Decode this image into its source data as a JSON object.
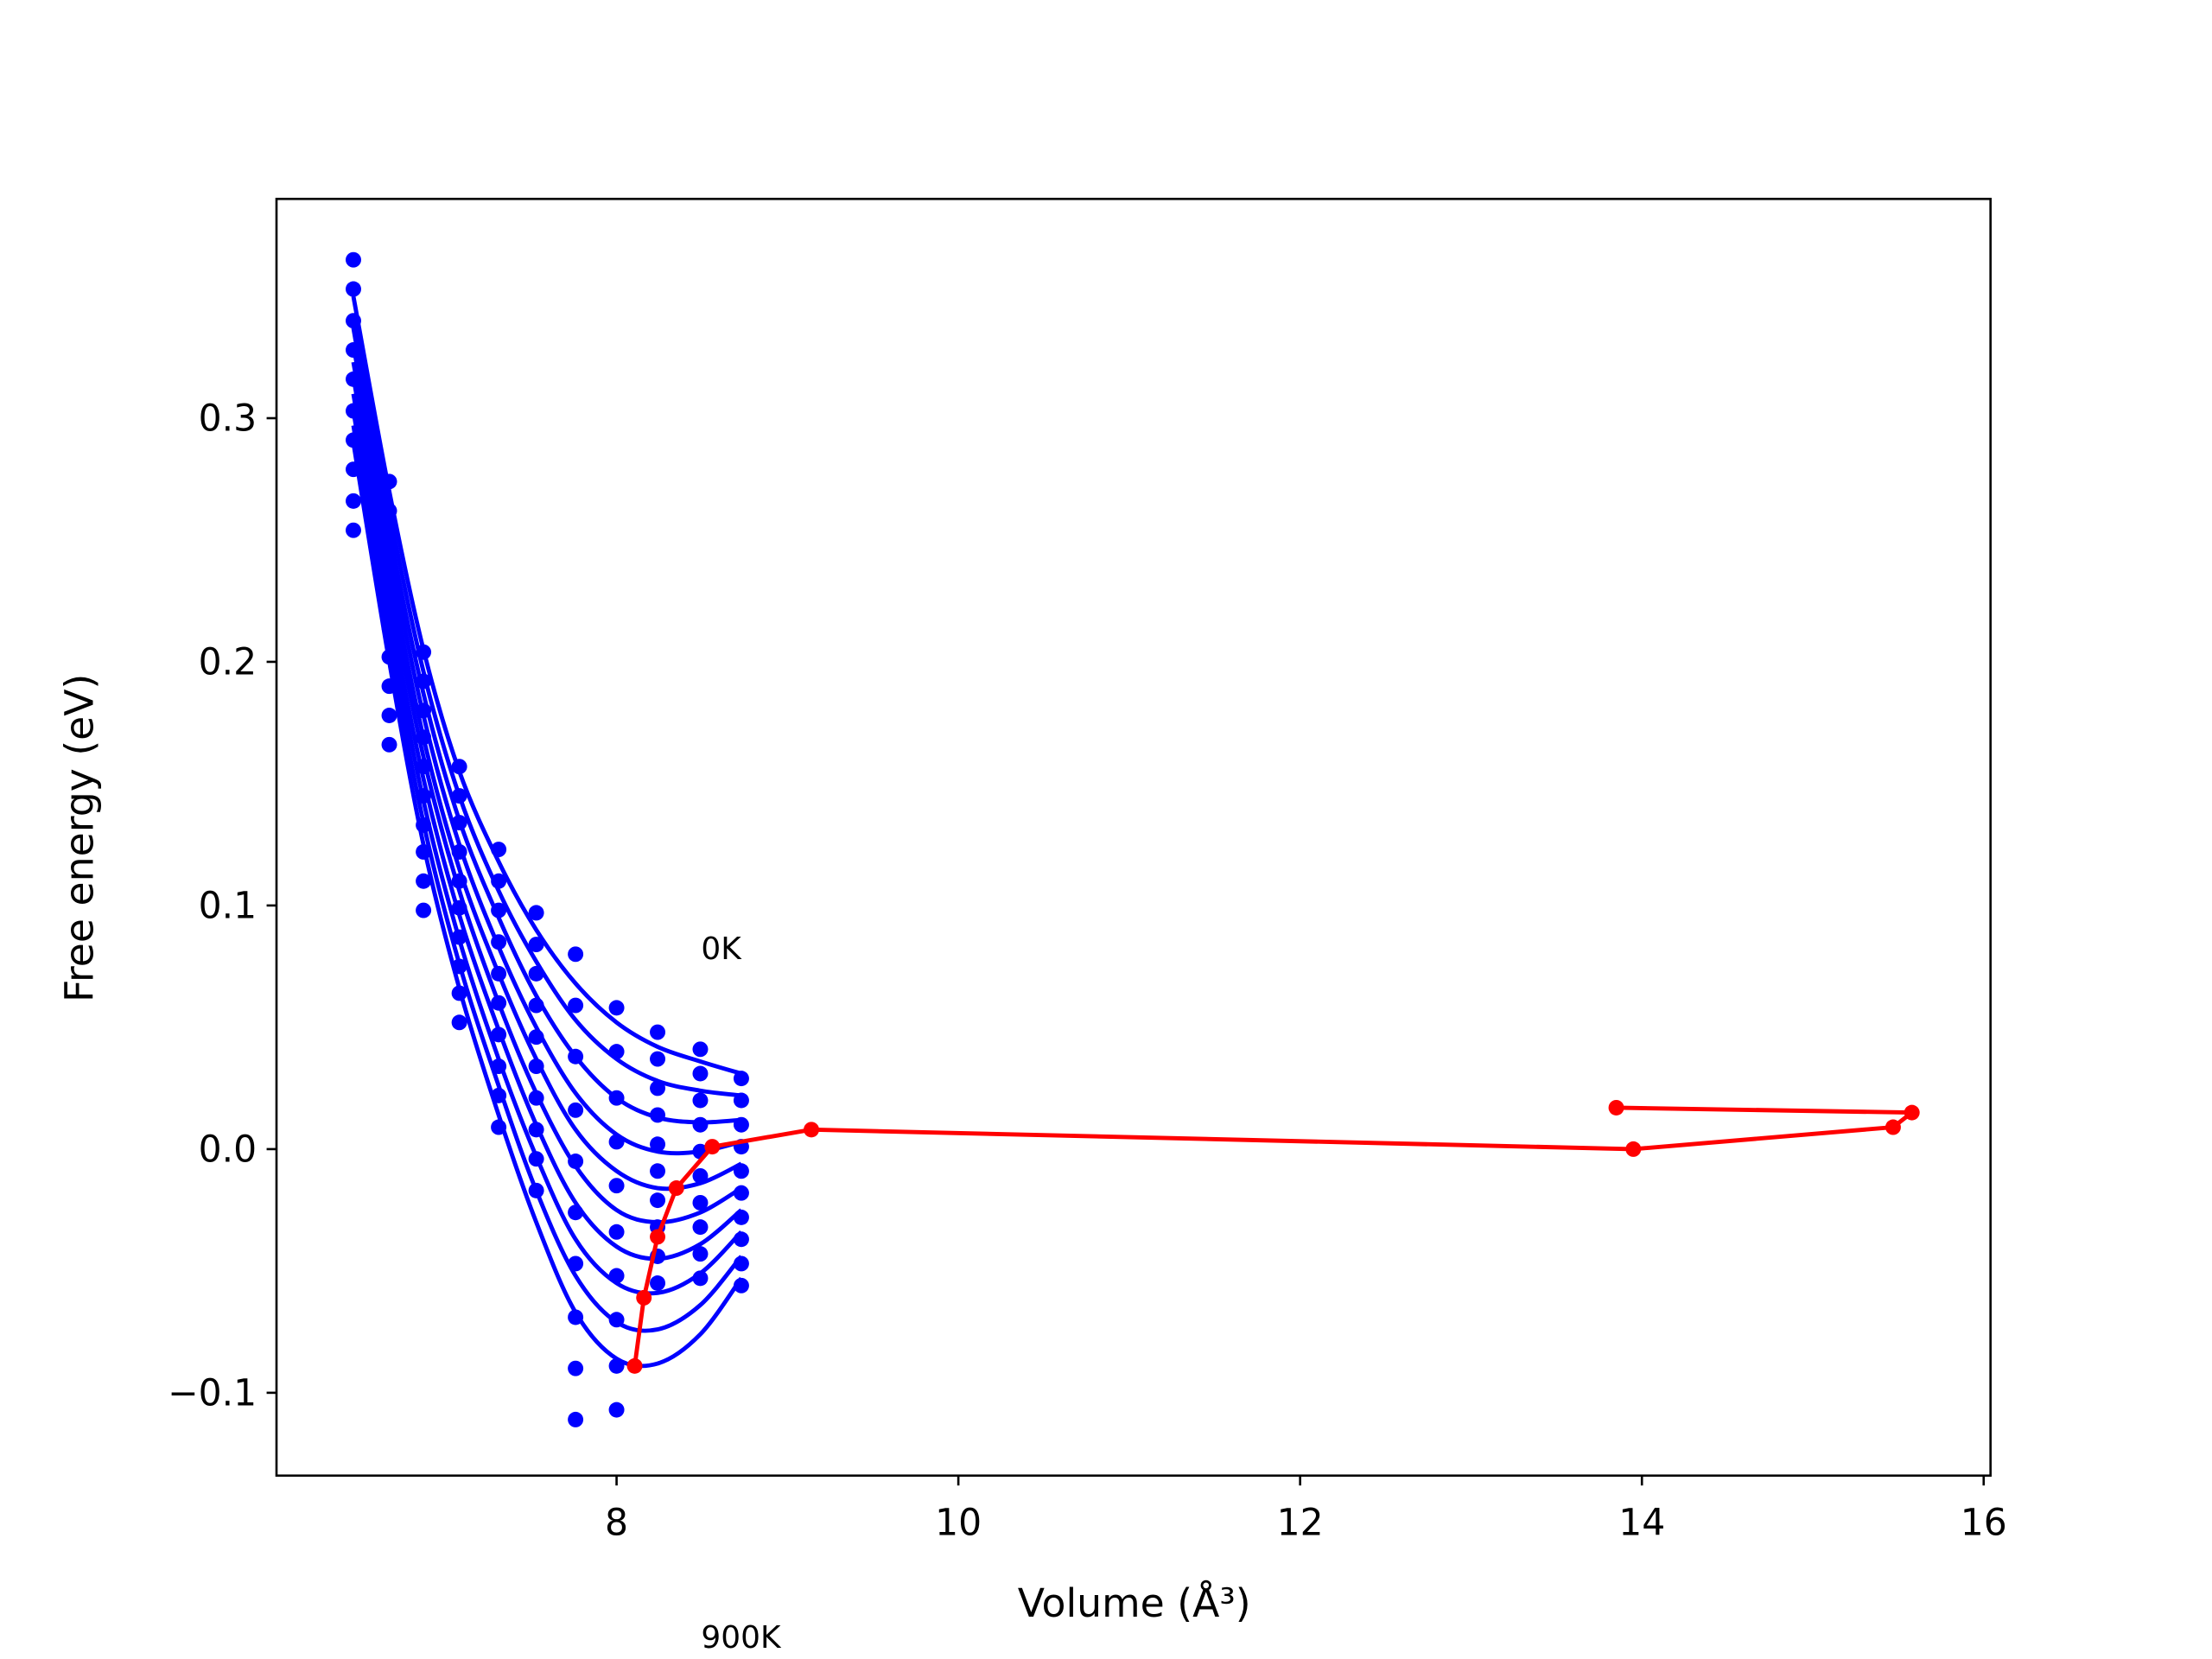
{
  "chart_data": {
    "type": "scatter",
    "xlabel": "Volume (Å³)",
    "ylabel": "Free energy (eV)",
    "annotations": [
      "0K",
      "900K"
    ],
    "xlim": [
      6.01,
      16.04
    ],
    "ylim": [
      -0.134,
      0.39
    ],
    "xticks": [
      8,
      10,
      12,
      14,
      16
    ],
    "yticks": [
      {
        "value": -0.1,
        "label": "−0.1"
      },
      {
        "value": 0,
        "label": "0.0"
      },
      0.1,
      0.2,
      0.3
    ],
    "x": [
      6.46,
      6.67,
      6.87,
      7.08,
      7.31,
      7.53,
      7.76,
      8.0,
      8.24,
      8.49,
      8.73
    ],
    "series": [
      {
        "color": "#0000ff",
        "values": [
          0.365,
          0.274,
          0.204,
          0.157,
          0.123,
          0.097,
          0.08,
          0.058,
          0.048,
          0.041,
          0.029
        ],
        "fit": [
          0.35,
          0.27,
          0.205,
          0.155,
          0.118,
          0.09,
          0.068,
          0.052,
          0.042,
          0.036,
          0.031
        ]
      },
      {
        "color": "#0000ff",
        "values": [
          0.353,
          0.262,
          0.192,
          0.145,
          0.11,
          0.084,
          0.059,
          0.04,
          0.037,
          0.031,
          0.02
        ],
        "fit": [
          0.343,
          0.262,
          0.196,
          0.145,
          0.106,
          0.077,
          0.053,
          0.037,
          0.028,
          0.024,
          0.022
        ]
      },
      {
        "color": "#0000ff",
        "values": [
          0.34,
          0.25,
          0.18,
          0.134,
          0.098,
          0.072,
          0.038,
          0.021,
          0.025,
          0.02,
          0.01
        ],
        "fit": [
          0.337,
          0.254,
          0.187,
          0.135,
          0.095,
          0.063,
          0.038,
          0.021,
          0.013,
          0.011,
          0.012
        ]
      },
      {
        "color": "#0000ff",
        "values": [
          0.328,
          0.238,
          0.169,
          0.122,
          0.085,
          0.059,
          0.016,
          0.003,
          0.014,
          0.01,
          0.001
        ],
        "fit": [
          0.33,
          0.247,
          0.178,
          0.125,
          0.083,
          0.05,
          0.023,
          0.006,
          -0.001,
          -0.001,
          0.003
        ]
      },
      {
        "color": "#0000ff",
        "values": [
          0.316,
          0.226,
          0.157,
          0.11,
          0.072,
          0.046,
          -0.005,
          -0.015,
          0.002,
          -0.001,
          -0.009
        ],
        "fit": [
          0.323,
          0.239,
          0.169,
          0.115,
          0.072,
          0.037,
          0.008,
          -0.009,
          -0.016,
          -0.014,
          -0.006
        ]
      },
      {
        "color": "#0000ff",
        "values": [
          0.303,
          0.214,
          0.145,
          0.099,
          0.06,
          0.034,
          -0.026,
          -0.034,
          -0.009,
          -0.011,
          -0.018
        ],
        "fit": [
          0.317,
          0.231,
          0.161,
          0.106,
          0.06,
          0.023,
          -0.007,
          -0.025,
          -0.03,
          -0.026,
          -0.016
        ]
      },
      {
        "color": "#0000ff",
        "values": [
          0.291,
          0.202,
          0.133,
          0.087,
          0.047,
          0.021,
          -0.047,
          -0.052,
          -0.021,
          -0.022,
          -0.028
        ],
        "fit": [
          0.31,
          0.223,
          0.152,
          0.096,
          0.049,
          0.01,
          -0.022,
          -0.04,
          -0.045,
          -0.039,
          -0.025
        ]
      },
      {
        "color": "#0000ff",
        "values": [
          0.279,
          0.19,
          0.122,
          0.075,
          0.034,
          0.008,
          -0.069,
          -0.07,
          -0.032,
          -0.032,
          -0.037
        ],
        "fit": [
          0.303,
          0.216,
          0.143,
          0.086,
          0.037,
          -0.003,
          -0.037,
          -0.055,
          -0.059,
          -0.051,
          -0.034
        ]
      },
      {
        "color": "#0000ff",
        "values": [
          0.266,
          0.178,
          0.11,
          0.064,
          0.022,
          -0.004,
          -0.09,
          -0.089,
          -0.044,
          -0.043,
          -0.047
        ],
        "fit": [
          0.297,
          0.208,
          0.134,
          0.076,
          0.026,
          -0.017,
          -0.052,
          -0.071,
          -0.074,
          -0.064,
          -0.044
        ]
      },
      {
        "color": "#0000ff",
        "values": [
          0.254,
          0.166,
          0.098,
          0.052,
          0.009,
          -0.017,
          -0.111,
          -0.107,
          -0.055,
          -0.053,
          -0.056
        ],
        "fit": [
          0.29,
          0.2,
          0.125,
          0.066,
          0.014,
          -0.03,
          -0.067,
          -0.086,
          -0.088,
          -0.076,
          -0.053
        ]
      }
    ],
    "minima": {
      "color": "#ff0000",
      "x": [
        8.106,
        8.16,
        8.24,
        8.35,
        8.56,
        9.14,
        13.95,
        15.47,
        15.58,
        13.85
      ],
      "values": [
        -0.089,
        -0.061,
        -0.036,
        -0.016,
        0.001,
        0.008,
        0.0,
        0.009,
        0.015,
        0.017
      ]
    }
  }
}
